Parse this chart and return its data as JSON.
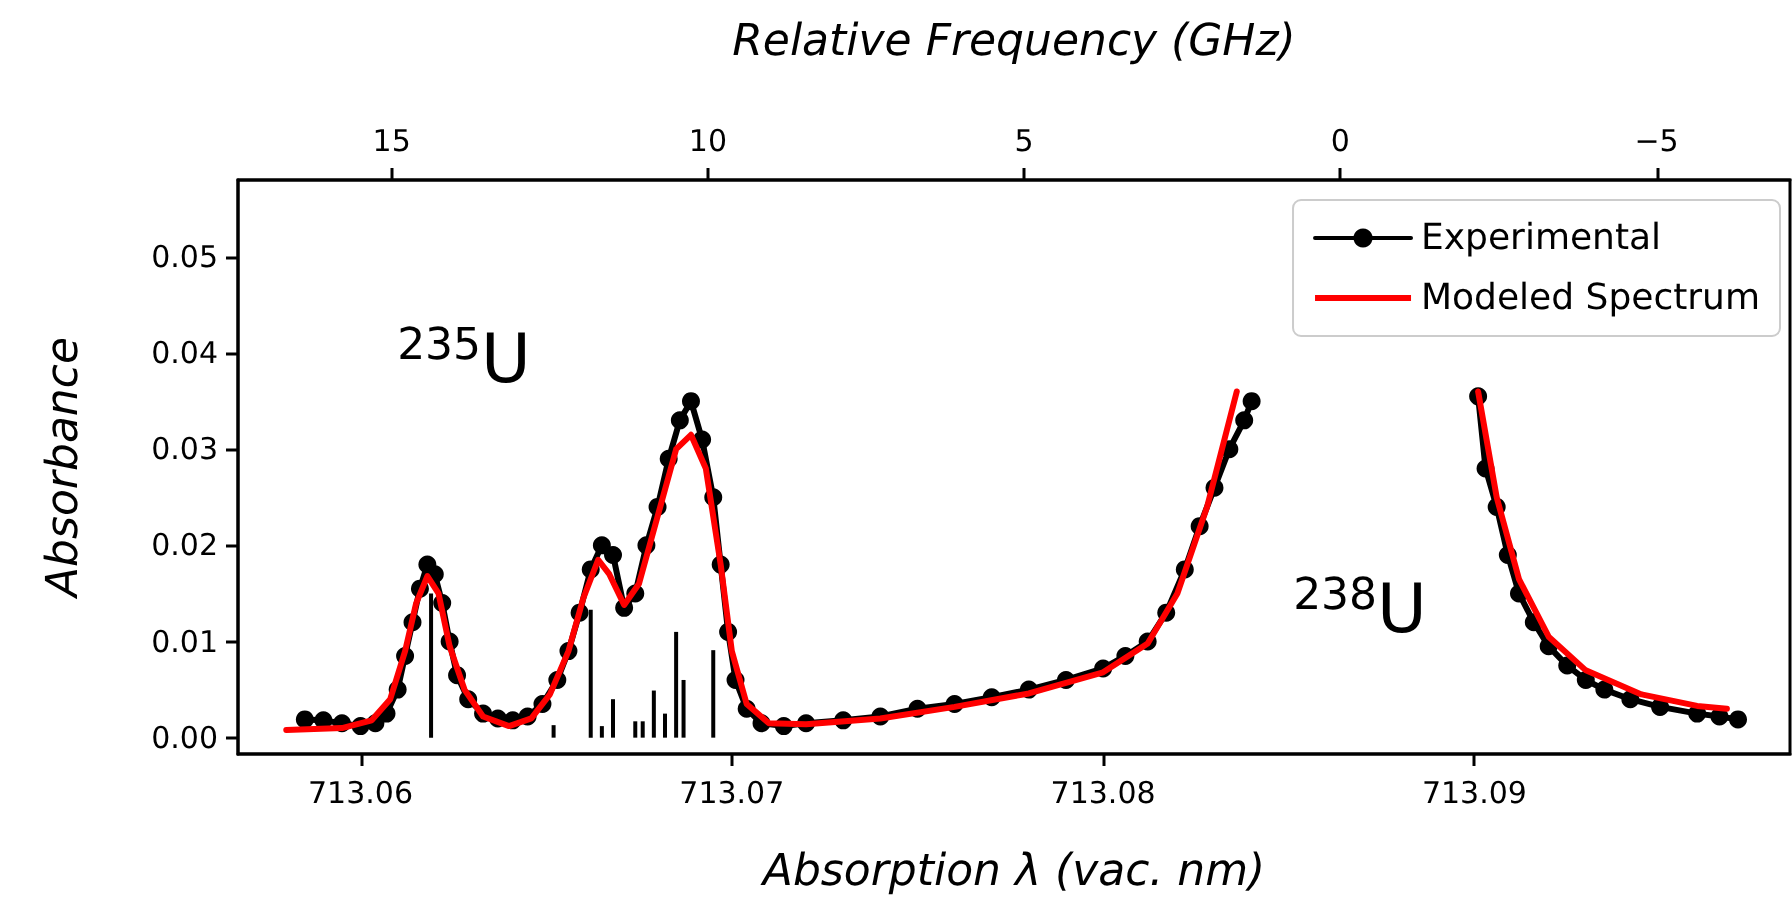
{
  "chart_data": {
    "type": "line",
    "xlabel": "Absorption λ (vac. nm)",
    "ylabel": "Absorbance",
    "x2label": "Relative Frequency (GHz)",
    "xlim": [
      713.0567,
      713.0985
    ],
    "xticks": [
      713.06,
      713.07,
      713.08,
      713.09
    ],
    "x2lim": [
      17.43,
      -7.11
    ],
    "x2ticks": [
      15,
      10,
      5,
      0,
      {
        "value": -5,
        "label": "−5"
      }
    ],
    "ylim": [
      -0.0017,
      0.058
    ],
    "yticks": [
      {
        "value": 0,
        "label": "0.00"
      },
      {
        "value": 0.01,
        "label": "0.01"
      },
      {
        "value": 0.02,
        "label": "0.02"
      },
      {
        "value": 0.03,
        "label": "0.03"
      },
      {
        "value": 0.04,
        "label": "0.04"
      },
      {
        "value": 0.05,
        "label": "0.05"
      }
    ],
    "grid": false,
    "legend": "top right",
    "annotations": [
      "$^{235}$U",
      "$^{238}$U"
    ],
    "series": [
      {
        "type": "bar",
        "color": "#000000",
        "x": [
          713.0619,
          713.0652,
          713.0662,
          713.0665,
          713.0668,
          713.0674,
          713.0676,
          713.0679,
          713.0682,
          713.0685,
          713.0687,
          713.0695
        ],
        "values": [
          0.015,
          0.0013,
          0.0133,
          0.0012,
          0.004,
          0.0017,
          0.0017,
          0.0049,
          0.0025,
          0.011,
          0.006,
          0.0091
        ]
      },
      {
        "name": "Experimental",
        "color": "#000000",
        "marker": "circle",
        "x": [
          713.0585,
          713.059,
          713.0595,
          713.06,
          713.0604,
          713.0607,
          713.061,
          713.0612,
          713.0614,
          713.0616,
          713.0618,
          713.062,
          713.0622,
          713.0624,
          713.0626,
          713.0629,
          713.0633,
          713.0637,
          713.0641,
          713.0645,
          713.0649,
          713.0653,
          713.0656,
          713.0659,
          713.0662,
          713.0665,
          713.0668,
          713.0671,
          713.0674,
          713.0677,
          713.068,
          713.0683,
          713.0686,
          713.0689,
          713.0692,
          713.0695,
          713.0697,
          713.0699,
          713.0701,
          713.0704,
          713.0708,
          713.0714,
          713.072,
          713.073,
          713.074,
          713.075,
          713.076,
          713.077,
          713.078,
          713.079,
          713.08,
          713.0806,
          713.0812,
          713.0817,
          713.0822,
          713.0826,
          713.083,
          713.0834,
          713.0838,
          713.084,
          713.087,
          713.0901,
          713.0903,
          713.0906,
          713.0909,
          713.0912,
          713.0916,
          713.092,
          713.0925,
          713.093,
          713.0935,
          713.0942,
          713.095,
          713.096,
          713.0966,
          713.0971
        ],
        "values": [
          0.0019,
          0.0018,
          0.0015,
          0.0012,
          0.0015,
          0.0025,
          0.005,
          0.0085,
          0.012,
          0.0155,
          0.018,
          0.017,
          0.014,
          0.01,
          0.0065,
          0.004,
          0.0025,
          0.002,
          0.0018,
          0.0022,
          0.0035,
          0.006,
          0.009,
          0.013,
          0.0175,
          0.02,
          0.019,
          0.0135,
          0.015,
          0.02,
          0.024,
          0.029,
          0.033,
          0.035,
          0.031,
          0.025,
          0.018,
          0.011,
          0.006,
          0.003,
          0.0015,
          0.0012,
          0.0015,
          0.0018,
          0.0022,
          0.003,
          0.0035,
          0.0042,
          0.005,
          0.006,
          0.0072,
          0.0085,
          0.01,
          0.013,
          0.0175,
          0.022,
          0.026,
          0.03,
          0.033,
          0.035,
          null,
          0.0355,
          0.028,
          0.024,
          0.019,
          0.015,
          0.012,
          0.0095,
          0.0075,
          0.006,
          0.005,
          0.004,
          0.0032,
          0.0025,
          0.0022,
          0.0019
        ]
      },
      {
        "name": "Modeled Spectrum",
        "color": "#ff0000",
        "marker": "none",
        "x": [
          713.058,
          713.0595,
          713.0603,
          713.0608,
          713.0612,
          713.0615,
          713.0618,
          713.0621,
          713.0624,
          713.0628,
          713.0633,
          713.064,
          713.0646,
          713.0651,
          713.0656,
          713.066,
          713.0664,
          713.0667,
          713.0671,
          713.0675,
          713.068,
          713.0685,
          713.0689,
          713.0693,
          713.0697,
          713.07,
          713.0704,
          713.071,
          713.072,
          713.074,
          713.076,
          713.078,
          713.08,
          713.0812,
          713.082,
          713.0828,
          713.0836,
          713.087,
          713.0901,
          713.0906,
          713.0912,
          713.092,
          713.093,
          713.0945,
          713.096,
          713.0968
        ],
        "values": [
          0.0008,
          0.001,
          0.0018,
          0.004,
          0.009,
          0.014,
          0.0168,
          0.015,
          0.0095,
          0.005,
          0.0022,
          0.0012,
          0.002,
          0.0045,
          0.009,
          0.0145,
          0.0185,
          0.017,
          0.0138,
          0.016,
          0.023,
          0.03,
          0.0315,
          0.028,
          0.018,
          0.009,
          0.0035,
          0.0015,
          0.0014,
          0.002,
          0.0032,
          0.0046,
          0.0068,
          0.0098,
          0.015,
          0.024,
          0.036,
          null,
          0.036,
          0.025,
          0.0165,
          0.0105,
          0.007,
          0.0045,
          0.0033,
          0.003
        ]
      }
    ]
  }
}
